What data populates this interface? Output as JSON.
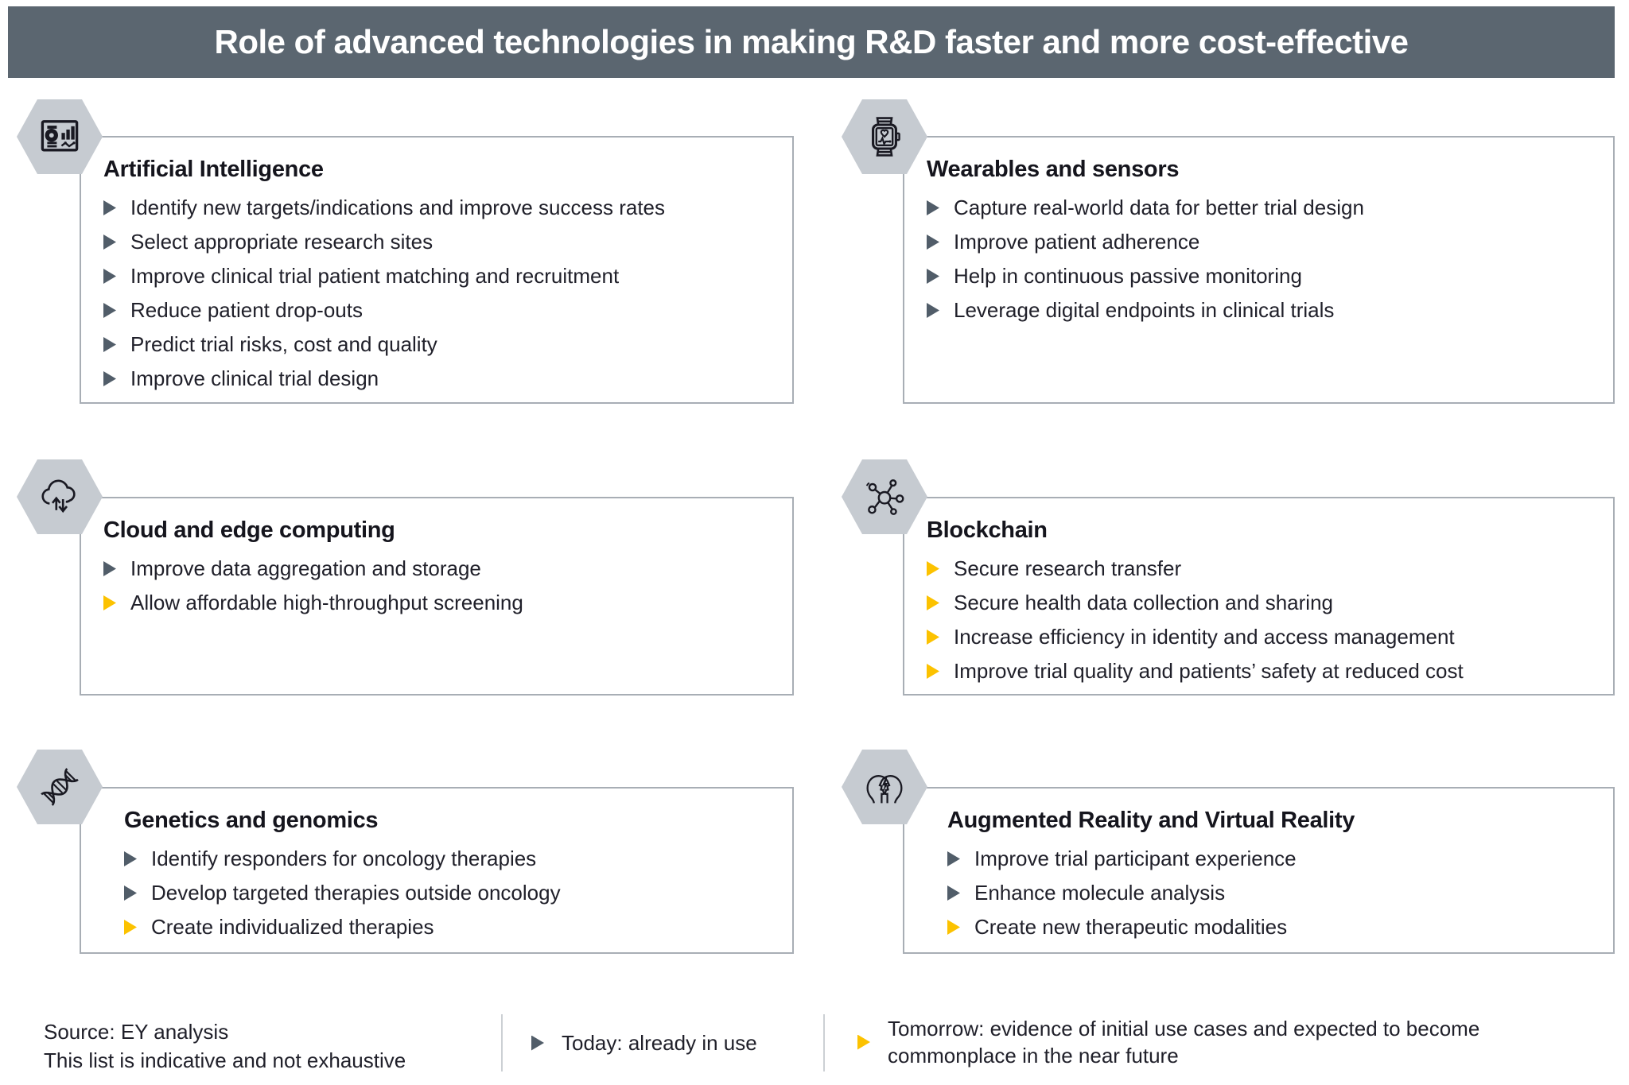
{
  "header": {
    "title": "Role of advanced technologies in making R&D faster and more cost-effective"
  },
  "colors": {
    "header_bg": "#5b6670",
    "header_text": "#ffffff",
    "hex_fill": "#c6cbd1",
    "box_border": "#a8aeb5",
    "text": "#20202a",
    "today_marker": "#515d69",
    "tomorrow_marker": "#fcc200",
    "divider": "#ccd0d4",
    "page_bg": "#ffffff"
  },
  "boxes": [
    {
      "id": "artificial-intelligence",
      "icon": "report-dashboard-icon",
      "title": "Artificial Intelligence",
      "items": [
        {
          "status": "today",
          "text": "Identify new targets/indications and improve success rates"
        },
        {
          "status": "today",
          "text": "Select appropriate research sites"
        },
        {
          "status": "today",
          "text": "Improve clinical trial patient matching and recruitment"
        },
        {
          "status": "today",
          "text": "Reduce patient drop-outs"
        },
        {
          "status": "today",
          "text": "Predict trial risks, cost and quality"
        },
        {
          "status": "today",
          "text": "Improve clinical trial design"
        }
      ]
    },
    {
      "id": "wearables-and-sensors",
      "icon": "smartwatch-icon",
      "title": "Wearables and sensors",
      "items": [
        {
          "status": "today",
          "text": "Capture real-world data for better trial design"
        },
        {
          "status": "today",
          "text": "Improve patient adherence"
        },
        {
          "status": "today",
          "text": "Help in continuous passive monitoring"
        },
        {
          "status": "today",
          "text": "Leverage digital endpoints in clinical trials"
        }
      ]
    },
    {
      "id": "cloud-and-edge-computing",
      "icon": "cloud-sync-icon",
      "title": "Cloud and edge computing",
      "items": [
        {
          "status": "today",
          "text": "Improve data aggregation and storage"
        },
        {
          "status": "tomorrow",
          "text": "Allow affordable high-throughput screening"
        }
      ]
    },
    {
      "id": "blockchain",
      "icon": "network-nodes-icon",
      "title": "Blockchain",
      "items": [
        {
          "status": "tomorrow",
          "text": "Secure research transfer"
        },
        {
          "status": "tomorrow",
          "text": "Secure health data collection and sharing"
        },
        {
          "status": "tomorrow",
          "text": "Increase efficiency in identity and access management"
        },
        {
          "status": "tomorrow",
          "text": "Improve trial quality and patients’ safety at reduced cost"
        }
      ]
    },
    {
      "id": "genetics-and-genomics",
      "icon": "dna-helix-icon",
      "title": "Genetics and genomics",
      "items": [
        {
          "status": "today",
          "text": "Identify responders for oncology therapies"
        },
        {
          "status": "today",
          "text": "Develop targeted therapies outside oncology"
        },
        {
          "status": "tomorrow",
          "text": "Create individualized therapies"
        }
      ]
    },
    {
      "id": "augmented-reality-and-virtual-reality",
      "icon": "ar-vr-heads-icon",
      "title": "Augmented Reality and Virtual Reality",
      "items": [
        {
          "status": "today",
          "text": "Improve trial participant experience"
        },
        {
          "status": "today",
          "text": "Enhance molecule analysis"
        },
        {
          "status": "tomorrow",
          "text": "Create new therapeutic modalities"
        }
      ]
    }
  ],
  "footer": {
    "source_line1": "Source: EY analysis",
    "source_line2": "This list is indicative and not exhaustive",
    "legend": [
      {
        "status": "today",
        "label": "Today: already in use"
      },
      {
        "status": "tomorrow",
        "label": "Tomorrow: evidence of initial use cases and expected to become commonplace in the near future"
      }
    ]
  }
}
